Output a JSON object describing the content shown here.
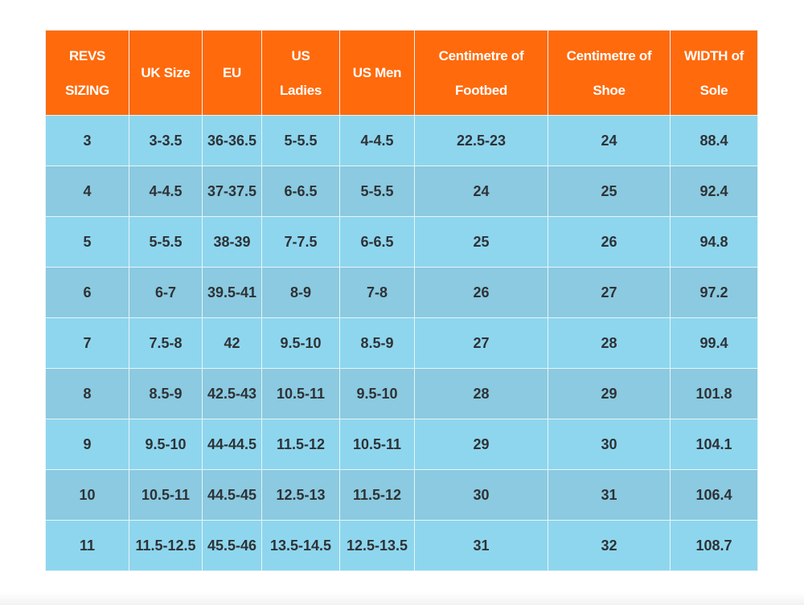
{
  "table": {
    "header": [
      [
        "REVS",
        "SIZING"
      ],
      [
        "UK Size"
      ],
      [
        "EU"
      ],
      [
        "US",
        "Ladies"
      ],
      [
        "US Men"
      ],
      [
        "Centimetre of",
        "Footbed"
      ],
      [
        "Centimetre of",
        "Shoe"
      ],
      [
        "WIDTH of",
        "Sole"
      ]
    ],
    "rows": [
      [
        "3",
        "3-3.5",
        "36-36.5",
        "5-5.5",
        "4-4.5",
        "22.5-23",
        "24",
        "88.4"
      ],
      [
        "4",
        "4-4.5",
        "37-37.5",
        "6-6.5",
        "5-5.5",
        "24",
        "25",
        "92.4"
      ],
      [
        "5",
        "5-5.5",
        "38-39",
        "7-7.5",
        "6-6.5",
        "25",
        "26",
        "94.8"
      ],
      [
        "6",
        "6-7",
        "39.5-41",
        "8-9",
        "7-8",
        "26",
        "27",
        "97.2"
      ],
      [
        "7",
        "7.5-8",
        "42",
        "9.5-10",
        "8.5-9",
        "27",
        "28",
        "99.4"
      ],
      [
        "8",
        "8.5-9",
        "42.5-43",
        "10.5-11",
        "9.5-10",
        "28",
        "29",
        "101.8"
      ],
      [
        "9",
        "9.5-10",
        "44-44.5",
        "11.5-12",
        "10.5-11",
        "29",
        "30",
        "104.1"
      ],
      [
        "10",
        "10.5-11",
        "44.5-45",
        "12.5-13",
        "11.5-12",
        "30",
        "31",
        "106.4"
      ],
      [
        "11",
        "11.5-12.5",
        "45.5-46",
        "13.5-14.5",
        "12.5-13.5",
        "31",
        "32",
        "108.7"
      ]
    ]
  }
}
